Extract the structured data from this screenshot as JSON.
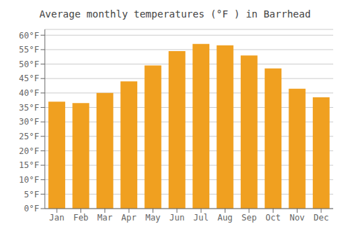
{
  "chart_data": {
    "type": "bar",
    "title": "Average monthly temperatures (°F ) in Barrhead",
    "categories": [
      "Jan",
      "Feb",
      "Mar",
      "Apr",
      "May",
      "Jun",
      "Jul",
      "Aug",
      "Sep",
      "Oct",
      "Nov",
      "Dec"
    ],
    "values": [
      37,
      36.5,
      40,
      44,
      49.5,
      54.5,
      57,
      56.5,
      53,
      48.5,
      41.5,
      38.5
    ],
    "color": "#F0A020",
    "ylim": [
      0,
      62
    ],
    "yticks": [
      {
        "value": 0,
        "label": "0°F"
      },
      {
        "value": 5,
        "label": "5°F"
      },
      {
        "value": 10,
        "label": "10°F"
      },
      {
        "value": 15,
        "label": "15°F"
      },
      {
        "value": 20,
        "label": "20°F"
      },
      {
        "value": 25,
        "label": "25°F"
      },
      {
        "value": 30,
        "label": "30°F"
      },
      {
        "value": 35,
        "label": "35°F"
      },
      {
        "value": 40,
        "label": "40°F"
      },
      {
        "value": 45,
        "label": "45°F"
      },
      {
        "value": 50,
        "label": "50°F"
      },
      {
        "value": 55,
        "label": "55°F"
      },
      {
        "value": 60,
        "label": "60°F"
      }
    ],
    "grid": true
  }
}
